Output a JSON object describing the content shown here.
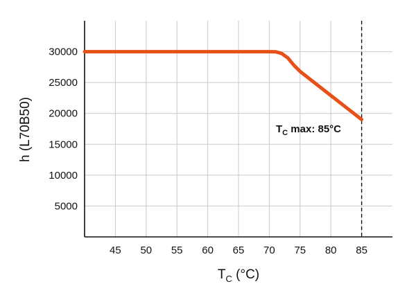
{
  "chart_data": {
    "type": "line",
    "xlabel": "T",
    "xlabel_sub": "C",
    "xlabel_unit": " (°C)",
    "ylabel": "h (L70B50)",
    "xlim": [
      40,
      90
    ],
    "ylim": [
      0,
      35000
    ],
    "x_ticks": [
      45,
      50,
      55,
      60,
      65,
      70,
      75,
      80,
      85
    ],
    "y_ticks": [
      5000,
      10000,
      15000,
      20000,
      25000,
      30000
    ],
    "x_tick_labels": [
      "45",
      "50",
      "55",
      "60",
      "65",
      "70",
      "75",
      "80",
      "85"
    ],
    "y_tick_labels": [
      "5000",
      "10000",
      "15000",
      "20000",
      "25000",
      "30000"
    ],
    "grid": true,
    "series": [
      {
        "color": "#e8501a",
        "points": [
          [
            40,
            30000
          ],
          [
            70,
            30000
          ],
          [
            71,
            29980
          ],
          [
            72,
            29700
          ],
          [
            73,
            29000
          ],
          [
            74,
            27800
          ],
          [
            75,
            26800
          ],
          [
            80,
            22900
          ],
          [
            85,
            19000
          ]
        ]
      }
    ],
    "reference_line": {
      "x": 85,
      "style": "dashed"
    },
    "annotation": {
      "prefix": "T",
      "sub": "C",
      "text": " max: 85°C"
    }
  }
}
